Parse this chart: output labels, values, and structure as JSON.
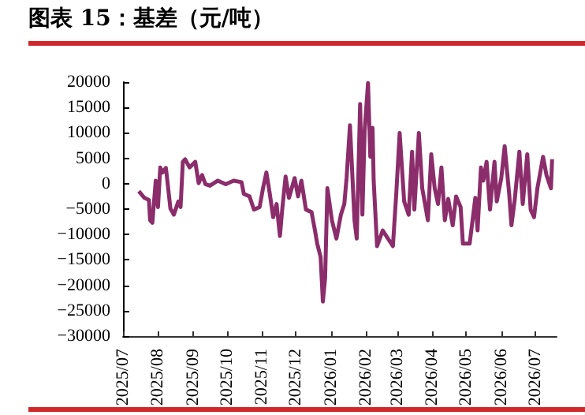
{
  "chart_data": {
    "type": "line",
    "title": "图表 15：基差（元/吨）",
    "x": [
      "2025-07-15",
      "2025-07-20",
      "2025-07-24",
      "2025-07-25",
      "2025-07-27",
      "2025-07-30",
      "2025-08-01",
      "2025-08-03",
      "2025-08-05",
      "2025-08-08",
      "2025-08-10",
      "2025-08-12",
      "2025-08-15",
      "2025-08-19",
      "2025-08-21",
      "2025-08-23",
      "2025-08-25",
      "2025-08-29",
      "2025-09-03",
      "2025-09-06",
      "2025-09-09",
      "2025-09-12",
      "2025-09-16",
      "2025-09-23",
      "2025-09-30",
      "2025-10-07",
      "2025-10-14",
      "2025-10-16",
      "2025-10-21",
      "2025-10-25",
      "2025-10-30",
      "2025-11-02",
      "2025-11-05",
      "2025-11-08",
      "2025-11-11",
      "2025-11-14",
      "2025-11-17",
      "2025-11-19",
      "2025-11-22",
      "2025-11-25",
      "2025-11-30",
      "2025-12-03",
      "2025-12-06",
      "2025-12-10",
      "2025-12-15",
      "2025-12-18",
      "2025-12-20",
      "2025-12-23",
      "2025-12-25",
      "2025-12-27",
      "2025-12-29",
      "2026-01-02",
      "2026-01-06",
      "2026-01-10",
      "2026-01-13",
      "2026-01-15",
      "2026-01-18",
      "2026-01-20",
      "2026-01-22",
      "2026-01-24",
      "2026-01-27",
      "2026-01-29",
      "2026-01-31",
      "2026-02-03",
      "2026-02-05",
      "2026-02-07",
      "2026-02-08",
      "2026-02-11",
      "2026-02-16",
      "2026-02-25",
      "2026-02-28",
      "2026-03-03",
      "2026-03-07",
      "2026-03-11",
      "2026-03-14",
      "2026-03-16",
      "2026-03-20",
      "2026-03-23",
      "2026-03-28",
      "2026-03-31",
      "2026-04-03",
      "2026-04-06",
      "2026-04-09",
      "2026-04-12",
      "2026-04-15",
      "2026-04-19",
      "2026-04-22",
      "2026-04-26",
      "2026-04-28",
      "2026-05-04",
      "2026-05-09",
      "2026-05-11",
      "2026-05-14",
      "2026-05-16",
      "2026-05-19",
      "2026-05-22",
      "2026-05-26",
      "2026-05-28",
      "2026-06-01",
      "2026-06-04",
      "2026-06-08",
      "2026-06-10",
      "2026-06-13",
      "2026-06-17",
      "2026-06-20",
      "2026-06-24",
      "2026-06-27",
      "2026-06-30",
      "2026-07-03",
      "2026-07-08",
      "2026-07-11",
      "2026-07-15",
      "2026-07-16"
    ],
    "series": [
      {
        "color": "#8b2d6b",
        "values": [
          -1500,
          -2800,
          -3200,
          -7200,
          -7700,
          600,
          -4600,
          3200,
          2200,
          3100,
          -900,
          -4900,
          -6100,
          -3500,
          -4600,
          4300,
          4800,
          3200,
          4300,
          100,
          1700,
          -100,
          -400,
          600,
          -100,
          600,
          300,
          -2000,
          -2500,
          -5100,
          -4600,
          -900,
          2200,
          -2000,
          -6600,
          -4000,
          -10300,
          -5100,
          1400,
          -2800,
          1100,
          -2500,
          600,
          -5100,
          -5600,
          -9200,
          -11800,
          -14400,
          -23200,
          -18600,
          -900,
          -7200,
          -10800,
          -6100,
          -4000,
          1100,
          11500,
          2200,
          -7200,
          -10800,
          15700,
          -6100,
          10500,
          19800,
          5300,
          11000,
          600,
          -12300,
          -9200,
          -12300,
          -2000,
          10000,
          -3500,
          -6100,
          6300,
          -5100,
          10000,
          -900,
          -7200,
          5800,
          -900,
          -4000,
          3200,
          -7200,
          -3000,
          -8200,
          -2500,
          -4600,
          -11800,
          -11800,
          -2800,
          -9200,
          3200,
          600,
          4300,
          -5100,
          4300,
          -3500,
          1100,
          7400,
          -2000,
          -8200,
          -3000,
          6300,
          -4000,
          5800,
          -5100,
          -6600,
          -900,
          5300,
          1700,
          -900,
          4800
        ]
      }
    ],
    "xlim": [
      "2025-07-01",
      "2026-07-20"
    ],
    "xticks": [
      {
        "value": "2025-07-01",
        "label": "2025/07"
      },
      {
        "value": "2025-08-01",
        "label": "2025/08"
      },
      {
        "value": "2025-09-01",
        "label": "2025/09"
      },
      {
        "value": "2025-10-01",
        "label": "2025/10"
      },
      {
        "value": "2025-11-01",
        "label": "2025/11"
      },
      {
        "value": "2025-12-01",
        "label": "2025/12"
      },
      {
        "value": "2026-01-01",
        "label": "2026/01"
      },
      {
        "value": "2026-02-01",
        "label": "2026/02"
      },
      {
        "value": "2026-03-01",
        "label": "2026/03"
      },
      {
        "value": "2026-04-01",
        "label": "2026/04"
      },
      {
        "value": "2026-05-01",
        "label": "2026/05"
      },
      {
        "value": "2026-06-01",
        "label": "2026/06"
      },
      {
        "value": "2026-07-01",
        "label": "2026/07"
      }
    ],
    "ylim": [
      -30000,
      20000
    ],
    "yticks": [
      {
        "value": -30000,
        "label": "−30000"
      },
      {
        "value": -25000,
        "label": "−25000"
      },
      {
        "value": -20000,
        "label": "−20000"
      },
      {
        "value": -15000,
        "label": "−15000"
      },
      {
        "value": -10000,
        "label": "−10000"
      },
      {
        "value": -5000,
        "label": "−5000"
      },
      0,
      5000,
      10000,
      15000,
      20000
    ],
    "marker": "none",
    "line_style": "solid"
  }
}
